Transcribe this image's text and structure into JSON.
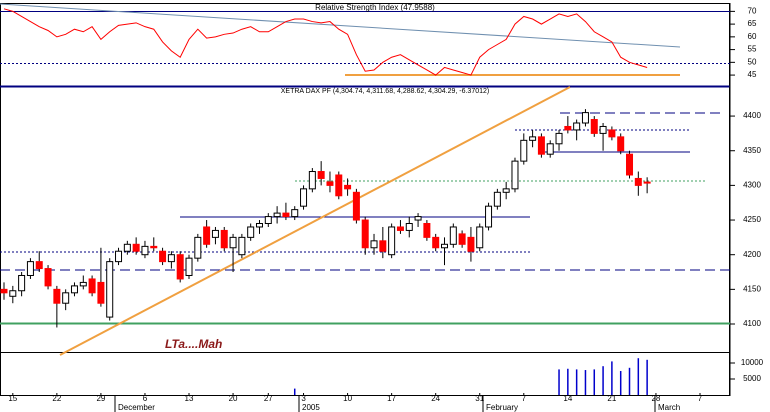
{
  "chart_data": [
    {
      "type": "line",
      "title": "Relative Strength Index (47.9588)",
      "color": "#ff0000",
      "ylim": [
        41.5,
        72.5
      ],
      "yticks": [
        45,
        50,
        55,
        60,
        65,
        70
      ],
      "values": [
        71,
        70,
        68,
        66,
        64,
        62.5,
        60,
        61,
        63,
        62,
        64,
        59,
        62,
        64.5,
        65,
        65.5,
        64,
        63,
        58,
        54.5,
        52,
        59,
        63,
        59.5,
        60,
        61,
        61.5,
        63,
        64,
        62,
        62,
        64,
        66,
        67,
        67,
        66,
        65.5,
        66,
        63,
        61,
        53,
        46.5,
        47,
        50,
        52,
        53,
        51,
        49,
        47,
        45,
        48,
        47,
        46,
        45,
        52,
        55,
        57,
        59,
        65,
        68,
        67,
        65,
        67,
        69,
        68,
        69,
        66,
        62,
        60,
        58,
        52,
        50,
        49,
        47.9588,
        null,
        null,
        null,
        null,
        null,
        null
      ]
    },
    {
      "type": "candlestick",
      "title": "XETRA DAX PF (4,304.74, 4,311.68, 4,288.62, 4,304.29, -6.37012)",
      "up_color": "#ffffff",
      "down_color": "#ff0000",
      "annotation": "LTa....Mah",
      "ylim": [
        4062.5,
        4440.5
      ],
      "yticks": [
        4100,
        4150,
        4200,
        4250,
        4300,
        4350,
        4400
      ],
      "categories": [
        null,
        "15",
        null,
        null,
        null,
        null,
        "22",
        null,
        null,
        null,
        null,
        "29",
        null,
        null,
        null,
        null,
        "6",
        null,
        null,
        null,
        null,
        "13",
        null,
        null,
        null,
        null,
        "20",
        null,
        null,
        null,
        "27",
        null,
        null,
        null,
        "3",
        null,
        null,
        null,
        null,
        "10",
        null,
        null,
        null,
        null,
        "17",
        null,
        null,
        null,
        null,
        "24",
        null,
        null,
        null,
        null,
        "31",
        null,
        null,
        null,
        null,
        "7",
        null,
        null,
        null,
        null,
        "14",
        null,
        null,
        null,
        null,
        "21",
        null,
        null,
        null,
        null,
        "28",
        null,
        null,
        null,
        null,
        "7"
      ],
      "x_periods": [
        "December",
        "2005",
        "February",
        "March"
      ],
      "open": [
        4150,
        4140,
        4148,
        4170,
        4190,
        4180,
        4150,
        4130,
        4145,
        4155,
        4165,
        4160,
        4110,
        4190,
        4205,
        4215,
        4200,
        4212,
        4205,
        4190,
        4200,
        4170,
        4195,
        4240,
        4225,
        4235,
        4210,
        4200,
        4225,
        4240,
        4245,
        4255,
        4260,
        4255,
        4270,
        4295,
        4320,
        4305,
        4315,
        4300,
        4290,
        4250,
        4210,
        4220,
        4200,
        4240,
        4235,
        4250,
        4245,
        4225,
        4210,
        4215,
        4230,
        4225,
        4210,
        4240,
        4270,
        4290,
        4295,
        4335,
        4365,
        4370,
        4345,
        4360,
        4385,
        4380,
        4390,
        4395,
        4375,
        4380,
        4370,
        4345,
        4310,
        4304.74,
        null,
        null,
        null,
        null,
        null,
        null
      ],
      "high": [
        4160,
        4155,
        4175,
        4195,
        4205,
        4185,
        4155,
        4150,
        4160,
        4170,
        4170,
        4210,
        4195,
        4210,
        4220,
        4225,
        4220,
        4225,
        4210,
        4205,
        4205,
        4200,
        4230,
        4250,
        4240,
        4240,
        4230,
        4230,
        4245,
        4250,
        4260,
        4270,
        4275,
        4270,
        4300,
        4325,
        4335,
        4320,
        4320,
        4310,
        4295,
        4255,
        4230,
        4240,
        4245,
        4250,
        4255,
        4260,
        4250,
        4230,
        4225,
        4245,
        4235,
        4240,
        4245,
        4275,
        4295,
        4305,
        4340,
        4375,
        4380,
        4375,
        4365,
        4380,
        4400,
        4395,
        4410,
        4400,
        4390,
        4385,
        4375,
        4350,
        4320,
        4311.68,
        null,
        null,
        null,
        null,
        null,
        null
      ],
      "low": [
        4135,
        4130,
        4140,
        4165,
        4175,
        4150,
        4095,
        4120,
        4140,
        4150,
        4140,
        4125,
        4105,
        4185,
        4200,
        4200,
        4195,
        4205,
        4185,
        4180,
        4160,
        4165,
        4190,
        4210,
        4215,
        4205,
        4175,
        4195,
        4220,
        4230,
        4240,
        4245,
        4250,
        4250,
        4265,
        4290,
        4300,
        4290,
        4280,
        4285,
        4245,
        4200,
        4200,
        4195,
        4195,
        4230,
        4225,
        4240,
        4220,
        4205,
        4185,
        4210,
        4210,
        4190,
        4205,
        4235,
        4265,
        4280,
        4290,
        4330,
        4355,
        4340,
        4340,
        4350,
        4375,
        4365,
        4385,
        4370,
        4350,
        4365,
        4345,
        4310,
        4285,
        4288.62,
        null,
        null,
        null,
        null,
        null,
        null
      ],
      "close": [
        4145,
        4148,
        4170,
        4190,
        4180,
        4155,
        4130,
        4145,
        4155,
        4160,
        4145,
        4130,
        4190,
        4205,
        4215,
        4205,
        4212,
        4210,
        4190,
        4200,
        4165,
        4195,
        4225,
        4215,
        4235,
        4210,
        4225,
        4225,
        4240,
        4245,
        4255,
        4260,
        4255,
        4265,
        4295,
        4320,
        4310,
        4300,
        4285,
        4295,
        4250,
        4210,
        4220,
        4205,
        4240,
        4235,
        4245,
        4255,
        4225,
        4210,
        4215,
        4240,
        4215,
        4205,
        4240,
        4270,
        4290,
        4295,
        4335,
        4365,
        4370,
        4345,
        4360,
        4375,
        4380,
        4390,
        4405,
        4375,
        4385,
        4370,
        4350,
        4315,
        4300,
        4304.29,
        null,
        null,
        null,
        null,
        null,
        null
      ]
    },
    {
      "type": "bar",
      "color": "#0000cc",
      "ylim": [
        0,
        12500
      ],
      "yticks": [
        5000,
        10000
      ],
      "values": [
        null,
        null,
        null,
        null,
        null,
        null,
        null,
        null,
        null,
        null,
        null,
        null,
        null,
        null,
        null,
        null,
        null,
        null,
        null,
        null,
        null,
        null,
        null,
        null,
        null,
        null,
        null,
        null,
        null,
        null,
        null,
        null,
        null,
        2000,
        null,
        null,
        null,
        null,
        null,
        null,
        null,
        null,
        null,
        null,
        null,
        null,
        null,
        null,
        null,
        null,
        null,
        null,
        null,
        null,
        null,
        null,
        null,
        null,
        null,
        null,
        null,
        null,
        null,
        8000,
        8200,
        8000,
        7800,
        8000,
        9000,
        10500,
        7500,
        8500,
        11500,
        11000,
        null,
        null,
        null,
        null,
        null,
        null
      ]
    }
  ]
}
